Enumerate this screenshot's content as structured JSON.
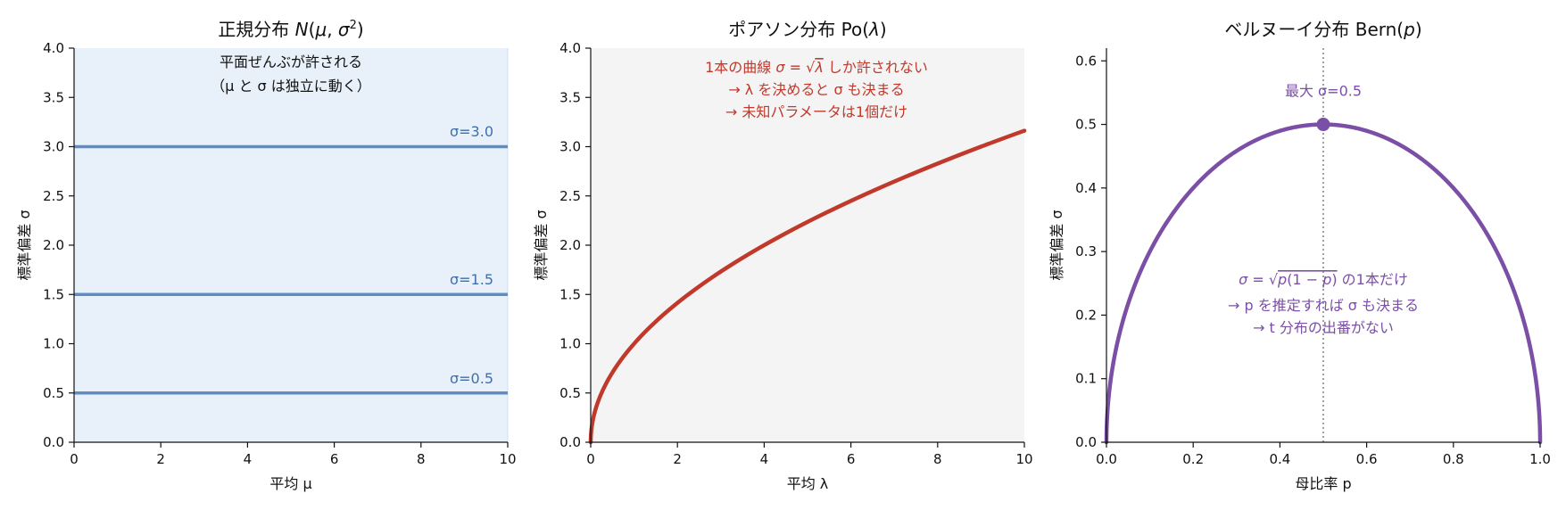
{
  "chart_data": [
    {
      "type": "line",
      "title": "正規分布 N(μ,σ²)",
      "xlabel": "平均 μ",
      "ylabel": "標準偏差 σ",
      "xlim": [
        0,
        10
      ],
      "ylim": [
        0,
        4
      ],
      "xticks": [
        "0",
        "2",
        "4",
        "6",
        "8",
        "10"
      ],
      "yticks": [
        "0.0",
        "0.5",
        "1.0",
        "1.5",
        "2.0",
        "2.5",
        "3.0",
        "3.5",
        "4.0"
      ],
      "background": "#e8f1f9",
      "shaded_region": {
        "x": [
          0,
          10
        ],
        "y": [
          0,
          4
        ],
        "color": "#e8f1f9"
      },
      "series": [
        {
          "name": "σ=0.5",
          "x": [
            0,
            10
          ],
          "y": [
            0.5,
            0.5
          ],
          "color": "#5f8cc3"
        },
        {
          "name": "σ=1.5",
          "x": [
            0,
            10
          ],
          "y": [
            1.5,
            1.5
          ],
          "color": "#5f8cc3"
        },
        {
          "name": "σ=3.0",
          "x": [
            0,
            10
          ],
          "y": [
            3.0,
            3.0
          ],
          "color": "#5f8cc3"
        }
      ],
      "line_label_color": "#3f6fae",
      "annotations": [
        {
          "text": "平面ぜんぶが許される",
          "color": "#111111"
        },
        {
          "text": "（μ と σ は独立に動く）",
          "color": "#111111"
        }
      ],
      "grid": false
    },
    {
      "type": "line",
      "title": "ポアソン分布 Po(λ)",
      "xlabel": "平均 λ",
      "ylabel": "標準偏差 σ",
      "xlim": [
        0,
        10
      ],
      "ylim": [
        0,
        4
      ],
      "xticks": [
        "0",
        "2",
        "4",
        "6",
        "8",
        "10"
      ],
      "yticks": [
        "0.0",
        "0.5",
        "1.0",
        "1.5",
        "2.0",
        "2.5",
        "3.0",
        "3.5",
        "4.0"
      ],
      "background": "#f4f4f4",
      "curve": "σ = √λ",
      "series": [
        {
          "x": [
            0,
            0.01,
            0.05,
            0.1,
            0.2,
            0.5,
            1,
            2,
            3,
            4,
            5,
            6,
            7,
            8,
            9,
            10
          ],
          "y": [
            0,
            0.1,
            0.224,
            0.316,
            0.447,
            0.707,
            1.0,
            1.414,
            1.732,
            2.0,
            2.236,
            2.449,
            2.646,
            2.828,
            3.0,
            3.162
          ],
          "color": "#c0392b"
        }
      ],
      "annotations": [
        {
          "text": "1本の曲線 σ = √λ しか許されない",
          "color": "#c0392b"
        },
        {
          "text": "→ λ を決めると σ も決まる",
          "color": "#c0392b"
        },
        {
          "text": "→ 未知パラメータは1個だけ",
          "color": "#c0392b"
        }
      ],
      "grid": false
    },
    {
      "type": "line",
      "title": "ベルヌーイ分布 Bern(p)",
      "xlabel": "母比率 p",
      "ylabel": "標準偏差 σ",
      "xlim": [
        0,
        1
      ],
      "ylim": [
        0,
        0.62
      ],
      "xticks": [
        "0.0",
        "0.2",
        "0.4",
        "0.6",
        "0.8",
        "1.0"
      ],
      "yticks": [
        "0.0",
        "0.1",
        "0.2",
        "0.3",
        "0.4",
        "0.5",
        "0.6"
      ],
      "background": "#ffffff",
      "curve": "σ = √(p(1−p))",
      "series": [
        {
          "x": [
            0,
            0.001,
            0.005,
            0.01,
            0.02,
            0.05,
            0.1,
            0.15,
            0.2,
            0.25,
            0.3,
            0.35,
            0.4,
            0.45,
            0.5,
            0.55,
            0.6,
            0.65,
            0.7,
            0.75,
            0.8,
            0.85,
            0.9,
            0.95,
            0.98,
            0.99,
            0.995,
            0.999,
            1
          ],
          "y": [
            0,
            0.032,
            0.071,
            0.099,
            0.14,
            0.218,
            0.3,
            0.357,
            0.4,
            0.433,
            0.458,
            0.477,
            0.49,
            0.497,
            0.5,
            0.497,
            0.49,
            0.477,
            0.458,
            0.433,
            0.4,
            0.357,
            0.3,
            0.218,
            0.14,
            0.099,
            0.071,
            0.032,
            0
          ],
          "color": "#7b4fa6"
        }
      ],
      "max_point": {
        "x": 0.5,
        "y": 0.5,
        "label": "最大 σ=0.5"
      },
      "vline": {
        "x": 0.5,
        "color": "#888888"
      },
      "annotations": [
        {
          "text": "σ = √p(1 − p) の1本だけ",
          "color": "#7b4fa6"
        },
        {
          "text": "→ p を推定すれば σ も決まる",
          "color": "#7b4fa6"
        },
        {
          "text": "→ t 分布の出番がない",
          "color": "#7b4fa6"
        }
      ],
      "grid": false
    }
  ]
}
